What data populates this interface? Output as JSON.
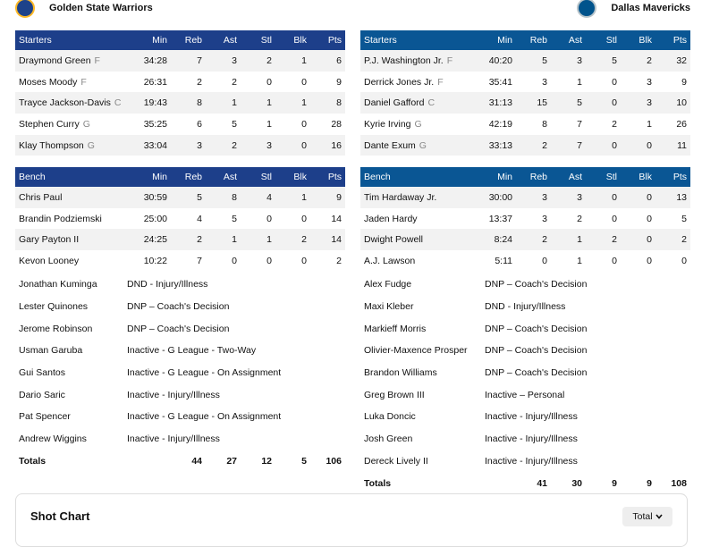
{
  "teams": [
    {
      "name": "Golden State Warriors",
      "color": "#1d3f8a",
      "starters": {
        "header": [
          "Starters",
          "Min",
          "Reb",
          "Ast",
          "Stl",
          "Blk",
          "Pts"
        ],
        "rows": [
          {
            "player": "Draymond Green",
            "pos": "F",
            "stats": [
              "34:28",
              7,
              3,
              2,
              1,
              6
            ]
          },
          {
            "player": "Moses Moody",
            "pos": "F",
            "stats": [
              "26:31",
              2,
              2,
              0,
              0,
              9
            ]
          },
          {
            "player": "Trayce Jackson-Davis",
            "pos": "C",
            "stats": [
              "19:43",
              8,
              1,
              1,
              1,
              8
            ]
          },
          {
            "player": "Stephen Curry",
            "pos": "G",
            "stats": [
              "35:25",
              6,
              5,
              1,
              0,
              28
            ]
          },
          {
            "player": "Klay Thompson",
            "pos": "G",
            "stats": [
              "33:04",
              3,
              2,
              3,
              0,
              16
            ]
          }
        ]
      },
      "bench": {
        "header": [
          "Bench",
          "Min",
          "Reb",
          "Ast",
          "Stl",
          "Blk",
          "Pts"
        ],
        "rows": [
          {
            "player": "Chris Paul",
            "stats": [
              "30:59",
              5,
              8,
              4,
              1,
              9
            ]
          },
          {
            "player": "Brandin Podziemski",
            "stats": [
              "25:00",
              4,
              5,
              0,
              0,
              14
            ]
          },
          {
            "player": "Gary Payton II",
            "stats": [
              "24:25",
              2,
              1,
              1,
              2,
              14
            ]
          },
          {
            "player": "Kevon Looney",
            "stats": [
              "10:22",
              7,
              0,
              0,
              0,
              2
            ]
          }
        ]
      },
      "inactive": [
        {
          "player": "Jonathan Kuminga",
          "status": "DND - Injury/Illness"
        },
        {
          "player": "Lester Quinones",
          "status": "DNP – Coach's Decision"
        },
        {
          "player": "Jerome Robinson",
          "status": "DNP – Coach's Decision"
        },
        {
          "player": "Usman Garuba",
          "status": "Inactive - G League - Two-Way"
        },
        {
          "player": "Gui Santos",
          "status": "Inactive - G League - On Assignment"
        },
        {
          "player": "Dario Saric",
          "status": "Inactive - Injury/Illness"
        },
        {
          "player": "Pat Spencer",
          "status": "Inactive - G League - On Assignment"
        },
        {
          "player": "Andrew Wiggins",
          "status": "Inactive - Injury/Illness"
        }
      ],
      "totals": {
        "label": "Totals",
        "stats": [
          44,
          27,
          12,
          5,
          106
        ]
      }
    },
    {
      "name": "Dallas Mavericks",
      "color": "#0a5694",
      "starters": {
        "header": [
          "Starters",
          "Min",
          "Reb",
          "Ast",
          "Stl",
          "Blk",
          "Pts"
        ],
        "rows": [
          {
            "player": "P.J. Washington Jr.",
            "pos": "F",
            "stats": [
              "40:20",
              5,
              3,
              5,
              2,
              32
            ]
          },
          {
            "player": "Derrick Jones Jr.",
            "pos": "F",
            "stats": [
              "35:41",
              3,
              1,
              0,
              3,
              9
            ]
          },
          {
            "player": "Daniel Gafford",
            "pos": "C",
            "stats": [
              "31:13",
              15,
              5,
              0,
              3,
              10
            ]
          },
          {
            "player": "Kyrie Irving",
            "pos": "G",
            "stats": [
              "42:19",
              8,
              7,
              2,
              1,
              26
            ]
          },
          {
            "player": "Dante Exum",
            "pos": "G",
            "stats": [
              "33:13",
              2,
              7,
              0,
              0,
              11
            ]
          }
        ]
      },
      "bench": {
        "header": [
          "Bench",
          "Min",
          "Reb",
          "Ast",
          "Stl",
          "Blk",
          "Pts"
        ],
        "rows": [
          {
            "player": "Tim Hardaway Jr.",
            "stats": [
              "30:00",
              3,
              3,
              0,
              0,
              13
            ]
          },
          {
            "player": "Jaden Hardy",
            "stats": [
              "13:37",
              3,
              2,
              0,
              0,
              5
            ]
          },
          {
            "player": "Dwight Powell",
            "stats": [
              "8:24",
              2,
              1,
              2,
              0,
              2
            ]
          },
          {
            "player": "A.J. Lawson",
            "stats": [
              "5:11",
              0,
              1,
              0,
              0,
              0
            ]
          }
        ]
      },
      "inactive": [
        {
          "player": "Alex Fudge",
          "status": "DNP – Coach's Decision"
        },
        {
          "player": "Maxi Kleber",
          "status": "DND - Injury/Illness"
        },
        {
          "player": "Markieff Morris",
          "status": "DNP – Coach's Decision"
        },
        {
          "player": "Olivier-Maxence Prosper",
          "status": "DNP – Coach's Decision"
        },
        {
          "player": "Brandon Williams",
          "status": "DNP – Coach's Decision"
        },
        {
          "player": "Greg Brown III",
          "status": "Inactive – Personal"
        },
        {
          "player": "Luka Doncic",
          "status": "Inactive - Injury/Illness"
        },
        {
          "player": "Josh Green",
          "status": "Inactive - Injury/Illness"
        },
        {
          "player": "Dereck Lively II",
          "status": "Inactive - Injury/Illness"
        }
      ],
      "totals": {
        "label": "Totals",
        "stats": [
          41,
          30,
          9,
          9,
          108
        ]
      }
    }
  ],
  "shot_chart": {
    "title": "Shot Chart",
    "filter": "Total"
  }
}
